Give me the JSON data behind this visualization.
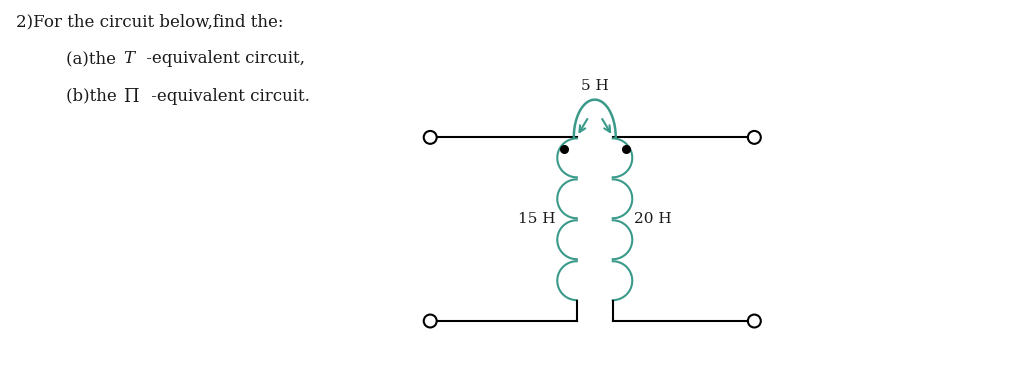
{
  "title_line1": "2)For the circuit below,find the:",
  "title_line2a": "(a)the ",
  "title_line2b": "T",
  "title_line2c": " -equivalent circuit,",
  "title_line3a": "(b)the ",
  "title_line3b": "Π",
  "title_line3c": " -equivalent circuit.",
  "bg_color": "#ffffff",
  "circuit_color": "#000000",
  "inductor_color": "#3a9a8a",
  "label_15H": "15 H",
  "label_20H": "20 H",
  "label_5H": "5 H",
  "text_color": "#1a1a1a"
}
